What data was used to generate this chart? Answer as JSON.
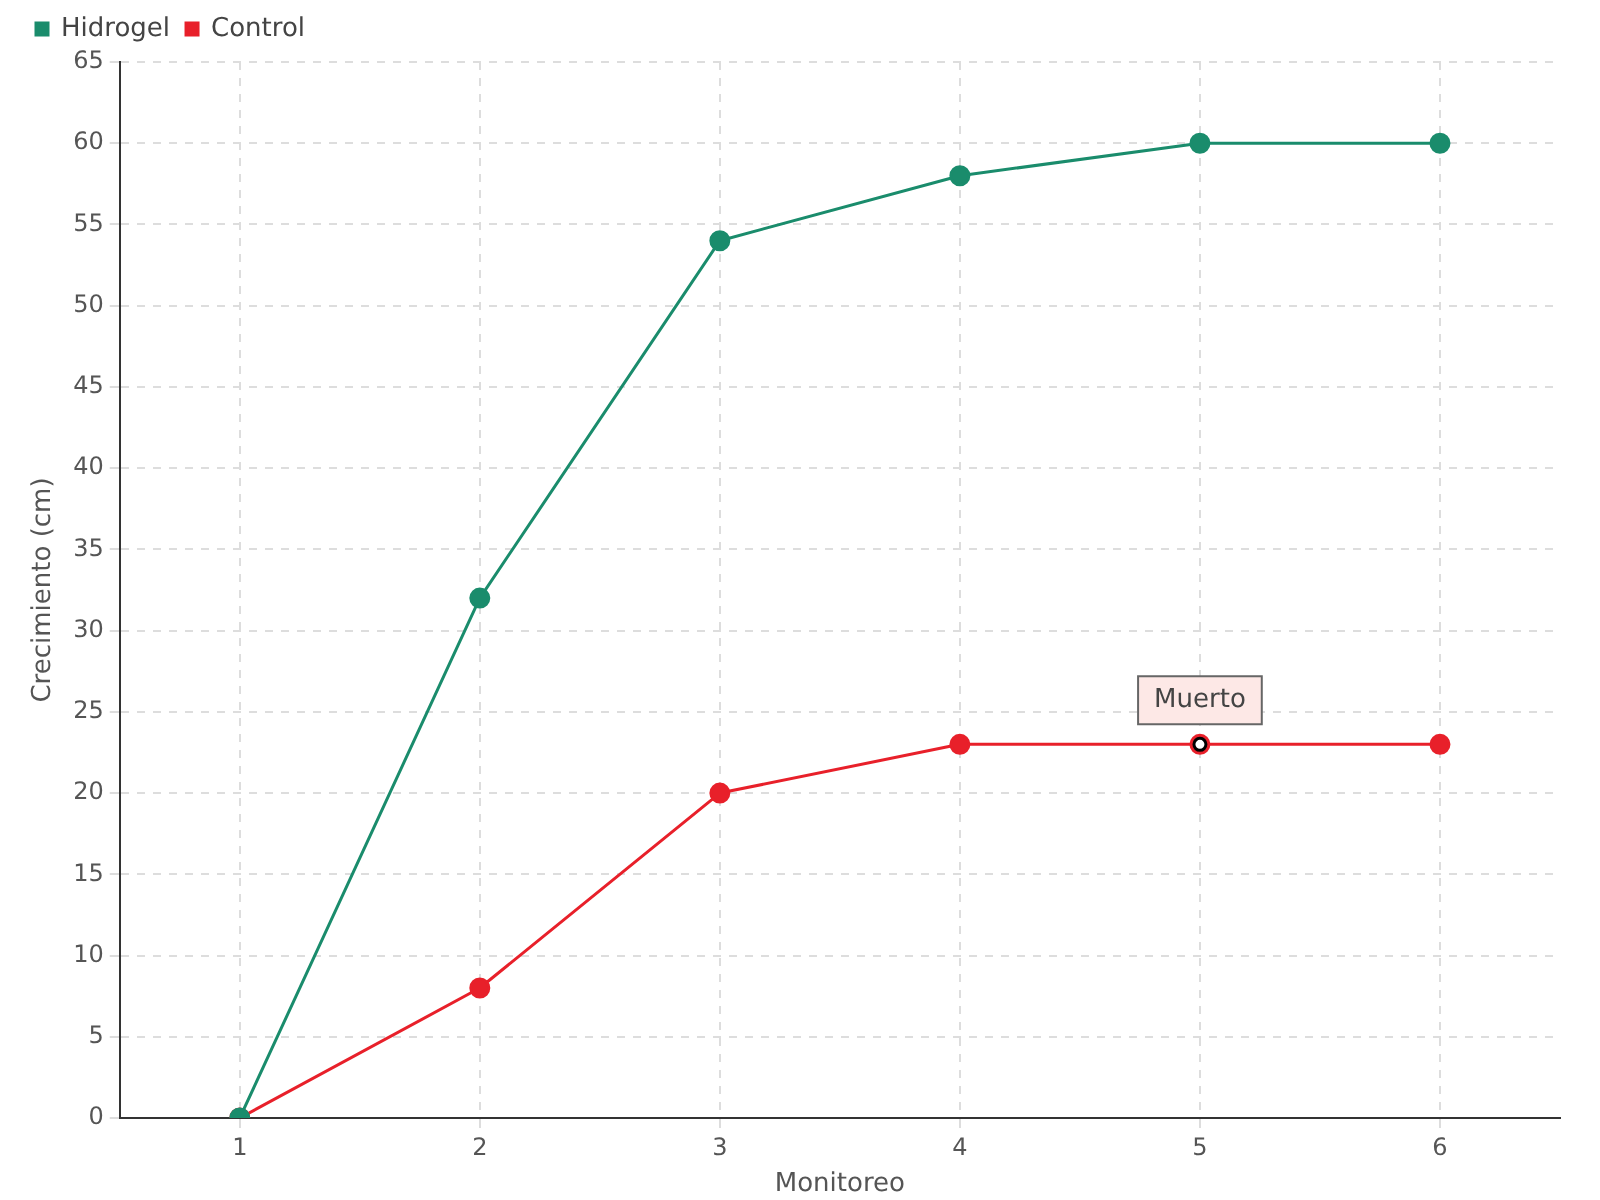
{
  "chart_data": {
    "type": "line",
    "xlabel": "Monitoreo",
    "ylabel": "Crecimiento (cm)",
    "x": [
      1,
      2,
      3,
      4,
      5,
      6
    ],
    "xlim": [
      0.5,
      6.5
    ],
    "xticks": [
      1,
      2,
      3,
      4,
      5,
      6
    ],
    "ylim": [
      0,
      65
    ],
    "yticks": [
      0,
      5,
      10,
      15,
      20,
      25,
      30,
      35,
      40,
      45,
      50,
      55,
      60,
      65
    ],
    "series": [
      {
        "name": "Hidrogel",
        "color": "#1a8c6c",
        "values": [
          0,
          32,
          54,
          58,
          60,
          60
        ]
      },
      {
        "name": "Control",
        "color": "#e8202a",
        "values": [
          0,
          8,
          20,
          23,
          23,
          23
        ]
      }
    ],
    "annotations": [
      {
        "text": "Muerto",
        "x": 5,
        "y": 23
      }
    ],
    "grid": true,
    "legend": "top left",
    "marker": "circle",
    "line_style": "solid"
  }
}
